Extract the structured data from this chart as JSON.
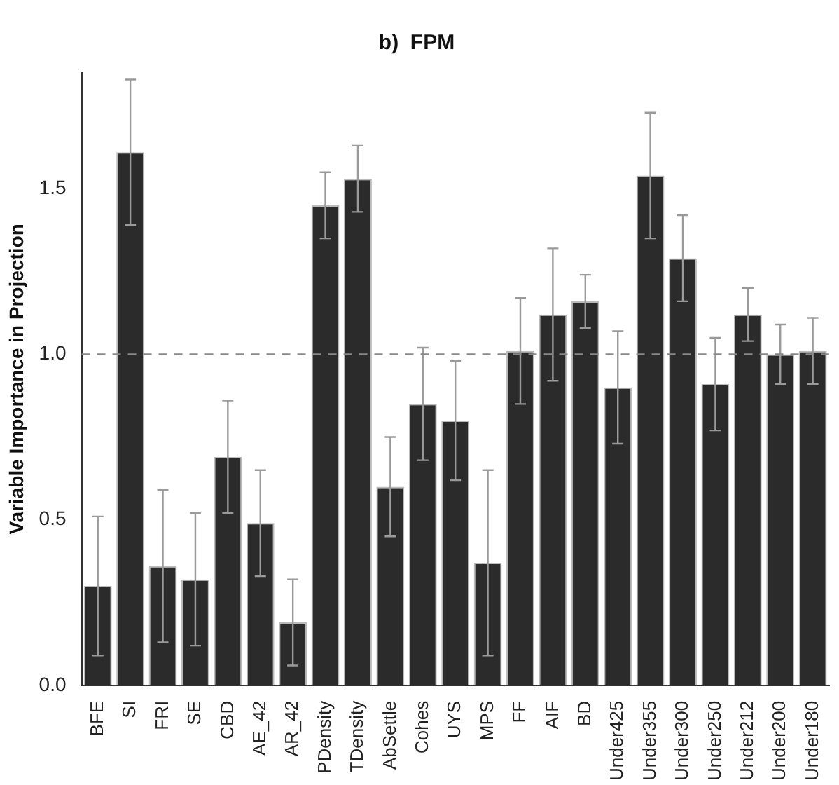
{
  "chart_data": {
    "type": "bar",
    "title": "b)  FPM",
    "ylabel": "Variable Importance in Projection",
    "categories": [
      "BFE",
      "SI",
      "FRI",
      "SE",
      "CBD",
      "AE_42",
      "AR_42",
      "PDensity",
      "TDensity",
      "AbSettle",
      "Cohes",
      "UYS",
      "MPS",
      "FF",
      "AIF",
      "BD",
      "Under425",
      "Under355",
      "Under300",
      "Under250",
      "Under212",
      "Under200",
      "Under180"
    ],
    "values": [
      0.3,
      1.61,
      0.36,
      0.32,
      0.69,
      0.49,
      0.19,
      1.45,
      1.53,
      0.6,
      0.85,
      0.8,
      0.37,
      1.01,
      1.12,
      1.16,
      0.9,
      1.54,
      1.29,
      0.91,
      1.12,
      1.0,
      1.01
    ],
    "errors": [
      0.21,
      0.22,
      0.23,
      0.2,
      0.17,
      0.16,
      0.13,
      0.1,
      0.1,
      0.15,
      0.17,
      0.18,
      0.28,
      0.16,
      0.2,
      0.08,
      0.17,
      0.19,
      0.13,
      0.14,
      0.08,
      0.09,
      0.1
    ],
    "color": "#2b2b2b",
    "ylim": [
      0,
      1.85
    ],
    "yticks": [
      {
        "value": 0,
        "label": "0.0"
      },
      0.5,
      {
        "value": 1,
        "label": "1.0"
      },
      1.5
    ],
    "ref_lines": [
      {
        "axis": "y",
        "value": 1.0,
        "color": "#888888",
        "line_style": "dashed"
      }
    ],
    "grid": false,
    "legend": false
  }
}
